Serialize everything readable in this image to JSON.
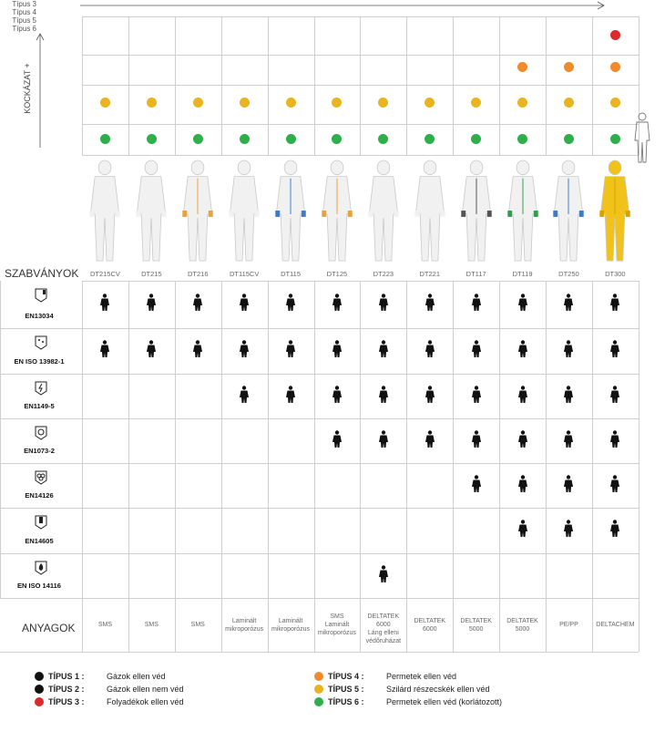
{
  "risk_axis": {
    "label": "KOCKÁZAT +",
    "rows": [
      "Típus 3",
      "Típus 4",
      "Típus 5",
      "Típus 6"
    ]
  },
  "standards_header": "SZABVÁNYOK",
  "materials_header": "ANYAGOK",
  "colors": {
    "red": "#dc2a2a",
    "orange": "#f08a2c",
    "yellow": "#e8b51f",
    "green": "#2eaf4a",
    "black": "#111111",
    "grid": "#cfcfcf"
  },
  "products": [
    {
      "code": "DT215CV",
      "material": [
        "SMS"
      ],
      "suit": "white",
      "t3": false,
      "t4": false,
      "t5": true,
      "t6": true
    },
    {
      "code": "DT215",
      "material": [
        "SMS"
      ],
      "suit": "white",
      "t3": false,
      "t4": false,
      "t5": true,
      "t6": true
    },
    {
      "code": "DT216",
      "material": [
        "SMS"
      ],
      "suit": "white-orange",
      "t3": false,
      "t4": false,
      "t5": true,
      "t6": true
    },
    {
      "code": "DT115CV",
      "material": [
        "Laminált",
        "mikroporózus"
      ],
      "suit": "white",
      "t3": false,
      "t4": false,
      "t5": true,
      "t6": true
    },
    {
      "code": "DT115",
      "material": [
        "Laminált",
        "mikroporózus"
      ],
      "suit": "white-blue",
      "t3": false,
      "t4": false,
      "t5": true,
      "t6": true
    },
    {
      "code": "DT125",
      "material": [
        "SMS",
        "Laminált",
        "mikroporózus"
      ],
      "suit": "white-orange",
      "t3": false,
      "t4": false,
      "t5": true,
      "t6": true
    },
    {
      "code": "DT223",
      "material": [
        "DELTATEK 6000",
        "Láng elleni",
        "védőruházat"
      ],
      "suit": "white",
      "t3": false,
      "t4": false,
      "t5": true,
      "t6": true
    },
    {
      "code": "DT221",
      "material": [
        "DELTATEK",
        "6000"
      ],
      "suit": "white",
      "t3": false,
      "t4": false,
      "t5": true,
      "t6": true
    },
    {
      "code": "DT117",
      "material": [
        "DELTATEK",
        "5000"
      ],
      "suit": "white-dark",
      "t3": false,
      "t4": false,
      "t5": true,
      "t6": true
    },
    {
      "code": "DT119",
      "material": [
        "DELTATEK",
        "5000"
      ],
      "suit": "white-green",
      "t3": false,
      "t4": true,
      "t5": true,
      "t6": true
    },
    {
      "code": "DT250",
      "material": [
        "PE/PP"
      ],
      "suit": "white-blue",
      "t3": false,
      "t4": true,
      "t5": true,
      "t6": true
    },
    {
      "code": "DT300",
      "material": [
        "DELTACHEM"
      ],
      "suit": "yellow",
      "t3": true,
      "t4": true,
      "t5": true,
      "t6": true
    }
  ],
  "standards": [
    {
      "name": "EN13034",
      "icon": "chemical-flask-icon",
      "from": 0
    },
    {
      "name": "EN ISO 13982-1",
      "icon": "chemical-dust-icon",
      "from": 0
    },
    {
      "name": "EN1149-5",
      "icon": "antistatic-icon",
      "from": 3
    },
    {
      "name": "EN1073-2",
      "icon": "radioactive-particles-icon",
      "from": 5
    },
    {
      "name": "EN14126",
      "icon": "biohazard-icon",
      "from": 8
    },
    {
      "name": "EN14605",
      "icon": "liquid-chemical-icon",
      "from": 9
    },
    {
      "name": "EN ISO 14116",
      "icon": "flame-icon",
      "only": 6
    }
  ],
  "legend": [
    {
      "color": "#111111",
      "label": "TÍPUS 1 :",
      "text": "Gázok ellen véd"
    },
    {
      "color": "#111111",
      "label": "TÍPUS 2 :",
      "text": "Gázok ellen nem véd"
    },
    {
      "color": "#dc2a2a",
      "label": "TÍPUS 3 :",
      "text": "Folyadékok ellen véd"
    },
    {
      "color": "#f08a2c",
      "label": "TÍPUS 4 :",
      "text": "Permetek ellen véd"
    },
    {
      "color": "#e8b51f",
      "label": "TÍPUS 5 :",
      "text": "Szilárd részecskék ellen véd"
    },
    {
      "color": "#2eaf4a",
      "label": "TÍPUS 6 :",
      "text": "Permetek ellen véd (korlátozott)"
    }
  ]
}
